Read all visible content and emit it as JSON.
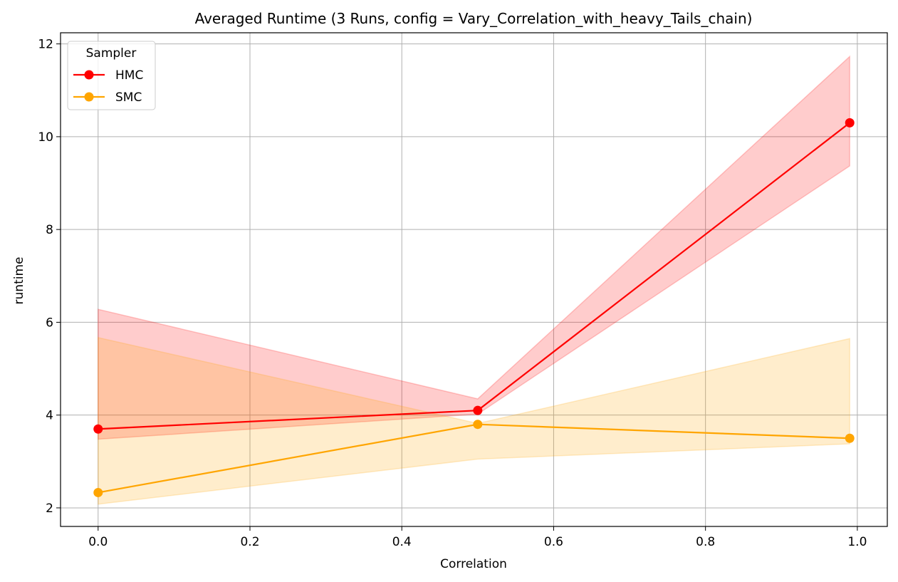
{
  "chart_data": {
    "type": "line",
    "title": "Averaged Runtime (3 Runs, config = Vary_Correlation_with_heavy_Tails_chain)",
    "xlabel": "Correlation",
    "ylabel": "runtime",
    "xlim": [
      -0.0495,
      1.0395
    ],
    "ylim": [
      1.6,
      12.24
    ],
    "xticks": [
      0.0,
      0.2,
      0.4,
      0.6,
      0.8,
      1.0
    ],
    "xtick_labels": [
      "0.0",
      "0.2",
      "0.4",
      "0.6",
      "0.8",
      "1.0"
    ],
    "yticks": [
      2,
      4,
      6,
      8,
      10,
      12
    ],
    "ytick_labels": [
      "2",
      "4",
      "6",
      "8",
      "10",
      "12"
    ],
    "grid": true,
    "legend": {
      "title": "Sampler",
      "placement": "top-left"
    },
    "x": [
      0.0,
      0.5,
      0.99
    ],
    "series": [
      {
        "name": "HMC",
        "color": "#ff0000",
        "marker": "circle",
        "values": [
          3.7,
          4.1,
          10.3
        ],
        "band_lower": [
          3.48,
          4.02,
          9.37
        ],
        "band_upper": [
          6.28,
          4.35,
          11.73
        ]
      },
      {
        "name": "SMC",
        "color": "#ffa500",
        "marker": "circle",
        "values": [
          2.33,
          3.8,
          3.5
        ],
        "band_lower": [
          2.08,
          3.05,
          3.38
        ],
        "band_upper": [
          5.67,
          3.82,
          5.65
        ]
      }
    ]
  }
}
